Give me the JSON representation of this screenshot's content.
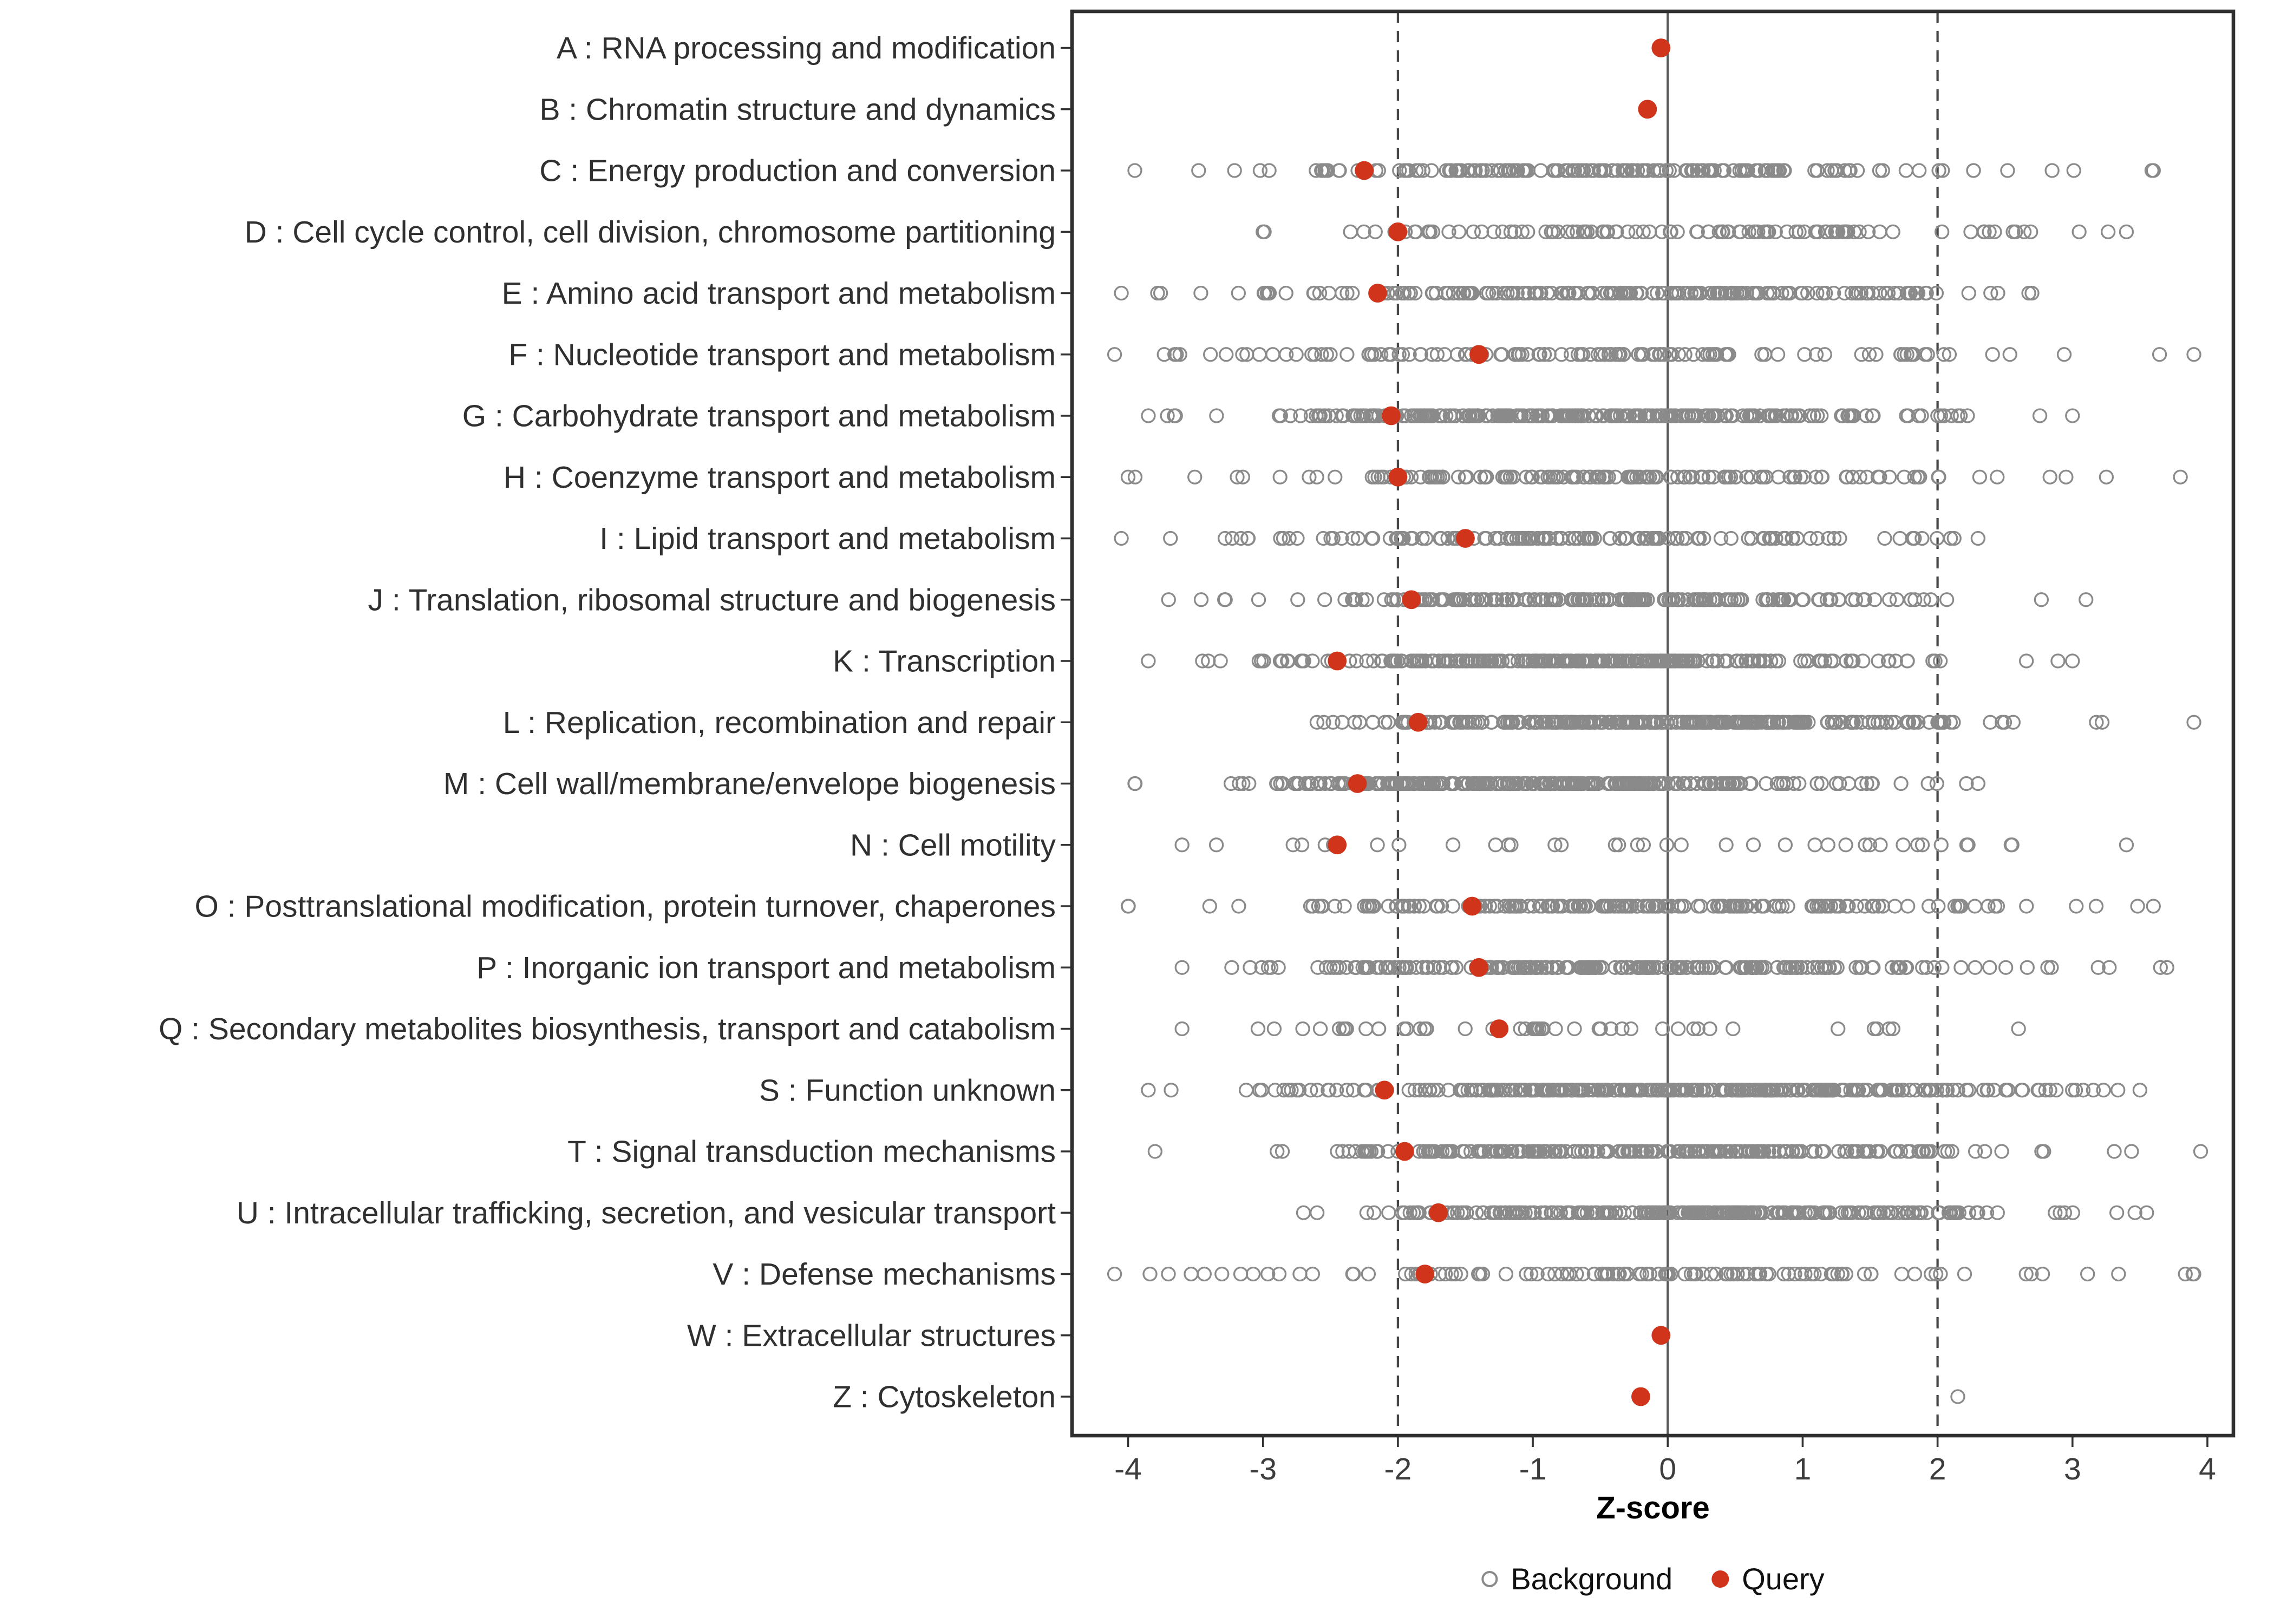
{
  "chart_data": {
    "type": "scatter",
    "subtype": "strip-dot-plot",
    "title": "",
    "xlabel": "Z-score",
    "ylabel": "",
    "xlim": [
      -4.4,
      4.2
    ],
    "x_ticks": [
      -4,
      -3,
      -2,
      -1,
      0,
      1,
      2,
      3,
      4
    ],
    "grid": false,
    "legend_position": "bottom",
    "reference_lines": {
      "solid_x": 0,
      "dashed_x": [
        -2,
        2
      ]
    },
    "legend": [
      {
        "label": "Background",
        "marker": "open-circle",
        "color": "#8a8a8a"
      },
      {
        "label": "Query",
        "marker": "filled-circle",
        "color": "#d0351c"
      }
    ],
    "categories": [
      {
        "label": "A : RNA processing and modification",
        "query": -0.05,
        "background": {
          "n": 0
        }
      },
      {
        "label": "B : Chromatin structure and dynamics",
        "query": -0.15,
        "background": {
          "n": 0
        }
      },
      {
        "label": "C : Energy production and conversion",
        "query": -2.25,
        "background": {
          "n": 170,
          "mean": -0.4,
          "sd": 1.25,
          "min": -3.95,
          "max": 3.6
        }
      },
      {
        "label": "D : Cell cycle control, cell division, chromosome partitioning",
        "query": -2.0,
        "background": {
          "n": 110,
          "mean": 0.1,
          "sd": 1.55,
          "min": -3.0,
          "max": 3.4
        }
      },
      {
        "label": "E : Amino acid transport and metabolism",
        "query": -2.15,
        "background": {
          "n": 185,
          "mean": -0.3,
          "sd": 1.5,
          "min": -4.05,
          "max": 2.7
        }
      },
      {
        "label": "F : Nucleotide transport and metabolism",
        "query": -1.4,
        "background": {
          "n": 125,
          "mean": -0.6,
          "sd": 1.6,
          "min": -4.1,
          "max": 3.9
        }
      },
      {
        "label": "G : Carbohydrate transport and metabolism",
        "query": -2.05,
        "background": {
          "n": 300,
          "mean": -0.7,
          "sd": 1.25,
          "min": -3.85,
          "max": 3.0
        }
      },
      {
        "label": "H : Coenzyme transport and metabolism",
        "query": -2.0,
        "background": {
          "n": 150,
          "mean": -0.4,
          "sd": 1.5,
          "min": -4.0,
          "max": 3.8
        }
      },
      {
        "label": "I : Lipid transport and metabolism",
        "query": -1.5,
        "background": {
          "n": 150,
          "mean": -0.7,
          "sd": 1.45,
          "min": -4.05,
          "max": 2.3
        }
      },
      {
        "label": "J : Translation, ribosomal structure and biogenesis",
        "query": -1.9,
        "background": {
          "n": 190,
          "mean": -0.45,
          "sd": 1.25,
          "min": -3.7,
          "max": 3.1
        }
      },
      {
        "label": "K : Transcription",
        "query": -2.45,
        "background": {
          "n": 280,
          "mean": -0.6,
          "sd": 1.2,
          "min": -3.85,
          "max": 3.0
        }
      },
      {
        "label": "L : Replication, recombination and repair",
        "query": -1.85,
        "background": {
          "n": 300,
          "mean": 0.0,
          "sd": 1.2,
          "min": -2.6,
          "max": 3.9
        }
      },
      {
        "label": "M : Cell wall/membrane/envelope biogenesis",
        "query": -2.3,
        "background": {
          "n": 300,
          "mean": -0.85,
          "sd": 1.15,
          "min": -3.95,
          "max": 2.3
        }
      },
      {
        "label": "N : Cell motility",
        "query": -2.45,
        "background": {
          "n": 38,
          "mean": -0.1,
          "sd": 1.9,
          "min": -3.6,
          "max": 3.4
        }
      },
      {
        "label": "O : Posttranslational modification, protein turnover, chaperones",
        "query": -1.45,
        "background": {
          "n": 190,
          "mean": -0.4,
          "sd": 1.5,
          "min": -4.0,
          "max": 3.6
        }
      },
      {
        "label": "P : Inorganic ion transport and metabolism",
        "query": -1.4,
        "background": {
          "n": 230,
          "mean": -0.2,
          "sd": 1.4,
          "min": -3.6,
          "max": 3.7
        }
      },
      {
        "label": "Q : Secondary metabolites biosynthesis, transport and catabolism",
        "query": -1.25,
        "background": {
          "n": 48,
          "mean": -0.5,
          "sd": 1.55,
          "min": -3.6,
          "max": 2.6
        }
      },
      {
        "label": "S : Function unknown",
        "query": -2.1,
        "background": {
          "n": 330,
          "mean": 0.05,
          "sd": 1.35,
          "min": -3.85,
          "max": 3.5
        }
      },
      {
        "label": "T : Signal transduction mechanisms",
        "query": -1.95,
        "background": {
          "n": 240,
          "mean": -0.15,
          "sd": 1.3,
          "min": -3.8,
          "max": 3.95
        }
      },
      {
        "label": "U : Intracellular trafficking, secretion, and vesicular transport",
        "query": -1.7,
        "background": {
          "n": 260,
          "mean": 0.25,
          "sd": 1.2,
          "min": -2.7,
          "max": 3.55
        }
      },
      {
        "label": "V : Defense mechanisms",
        "query": -1.8,
        "background": {
          "n": 115,
          "mean": -0.5,
          "sd": 1.55,
          "min": -4.1,
          "max": 3.9
        }
      },
      {
        "label": "W : Extracellular structures",
        "query": -0.05,
        "background": {
          "n": 0
        }
      },
      {
        "label": "Z : Cytoskeleton",
        "query": -0.2,
        "background": {
          "n": 1,
          "points": [
            2.15
          ]
        }
      }
    ]
  },
  "colors": {
    "query": "#d0351c",
    "background_stroke": "#8a8a8a",
    "ref_line": "#474747",
    "zero_line": "#5a5a5a",
    "panel_border": "#2f2f2f",
    "axis_tick": "#333333",
    "text": "#303030"
  }
}
